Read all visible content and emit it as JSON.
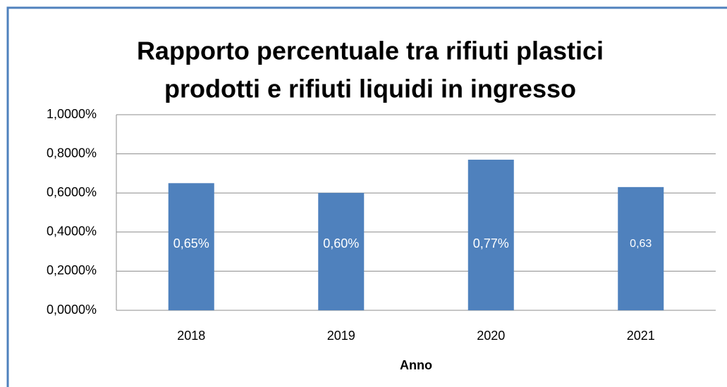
{
  "chart_data": {
    "type": "bar",
    "title": [
      "Rapporto percentuale tra rifiuti plastici",
      "prodotti e rifiuti liquidi in ingresso"
    ],
    "x_label": "Anno",
    "categories": [
      "2018",
      "2019",
      "2020",
      "2021"
    ],
    "values": [
      0.65,
      0.6,
      0.77,
      0.63
    ],
    "value_labels": [
      "0,65%",
      "0,60%",
      "0,77%",
      "0,63"
    ],
    "color": "#4f81bd",
    "ylim": [
      0,
      1
    ],
    "yticks": [
      {
        "value": 0,
        "label": "0,0000%"
      },
      {
        "value": 0.2,
        "label": "0,2000%"
      },
      {
        "value": 0.4,
        "label": "0,4000%"
      },
      {
        "value": 0.6,
        "label": "0,6000%"
      },
      {
        "value": 0.8,
        "label": "0,8000%"
      },
      {
        "value": 1,
        "label": "1,0000%"
      }
    ],
    "grid": true
  }
}
